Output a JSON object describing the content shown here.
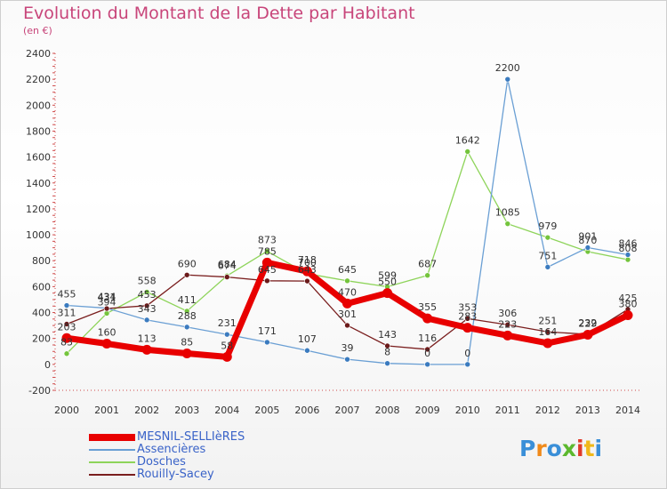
{
  "title": "Evolution du Montant de la Dette par Habitant",
  "subtitle": "(en €)",
  "logo": "Proxiti",
  "chart_data": {
    "type": "line",
    "x": [
      "2000",
      "2001",
      "2002",
      "2003",
      "2004",
      "2005",
      "2006",
      "2007",
      "2008",
      "2009",
      "2010",
      "2011",
      "2012",
      "2013",
      "2014"
    ],
    "ylim": [
      -200,
      2400
    ],
    "yticks": [
      -200,
      0,
      200,
      400,
      600,
      800,
      1000,
      1200,
      1400,
      1600,
      1800,
      2000,
      2200,
      2400
    ],
    "grid": false,
    "legend_position": "bottom-left",
    "series": [
      {
        "name": "Assencières",
        "color": "#6a9fd4",
        "marker": "#3b7bbf",
        "width": 1.3,
        "values": [
          455,
          434,
          343,
          288,
          231,
          171,
          107,
          39,
          8,
          0,
          0,
          2200,
          751,
          901,
          846
        ]
      },
      {
        "name": "Dosches",
        "color": "#8ed45a",
        "marker": "#74c43c",
        "width": 1.3,
        "values": [
          83,
          394,
          558,
          411,
          684,
          873,
          700,
          645,
          599,
          687,
          1642,
          1085,
          979,
          870,
          808
        ]
      },
      {
        "name": "Rouilly-Sacey",
        "color": "#7a1e1e",
        "marker": "#6b1a1a",
        "width": 1.3,
        "values": [
          311,
          431,
          453,
          690,
          674,
          645,
          643,
          301,
          143,
          116,
          353,
          306,
          251,
          232,
          425
        ]
      },
      {
        "name": "MESNIL-SELLIèRES",
        "color": "#e80000",
        "marker": "#e80000",
        "width": 7,
        "values": [
          203,
          160,
          113,
          85,
          58,
          785,
          718,
          470,
          550,
          355,
          283,
          223,
          164,
          229,
          380
        ]
      }
    ]
  }
}
